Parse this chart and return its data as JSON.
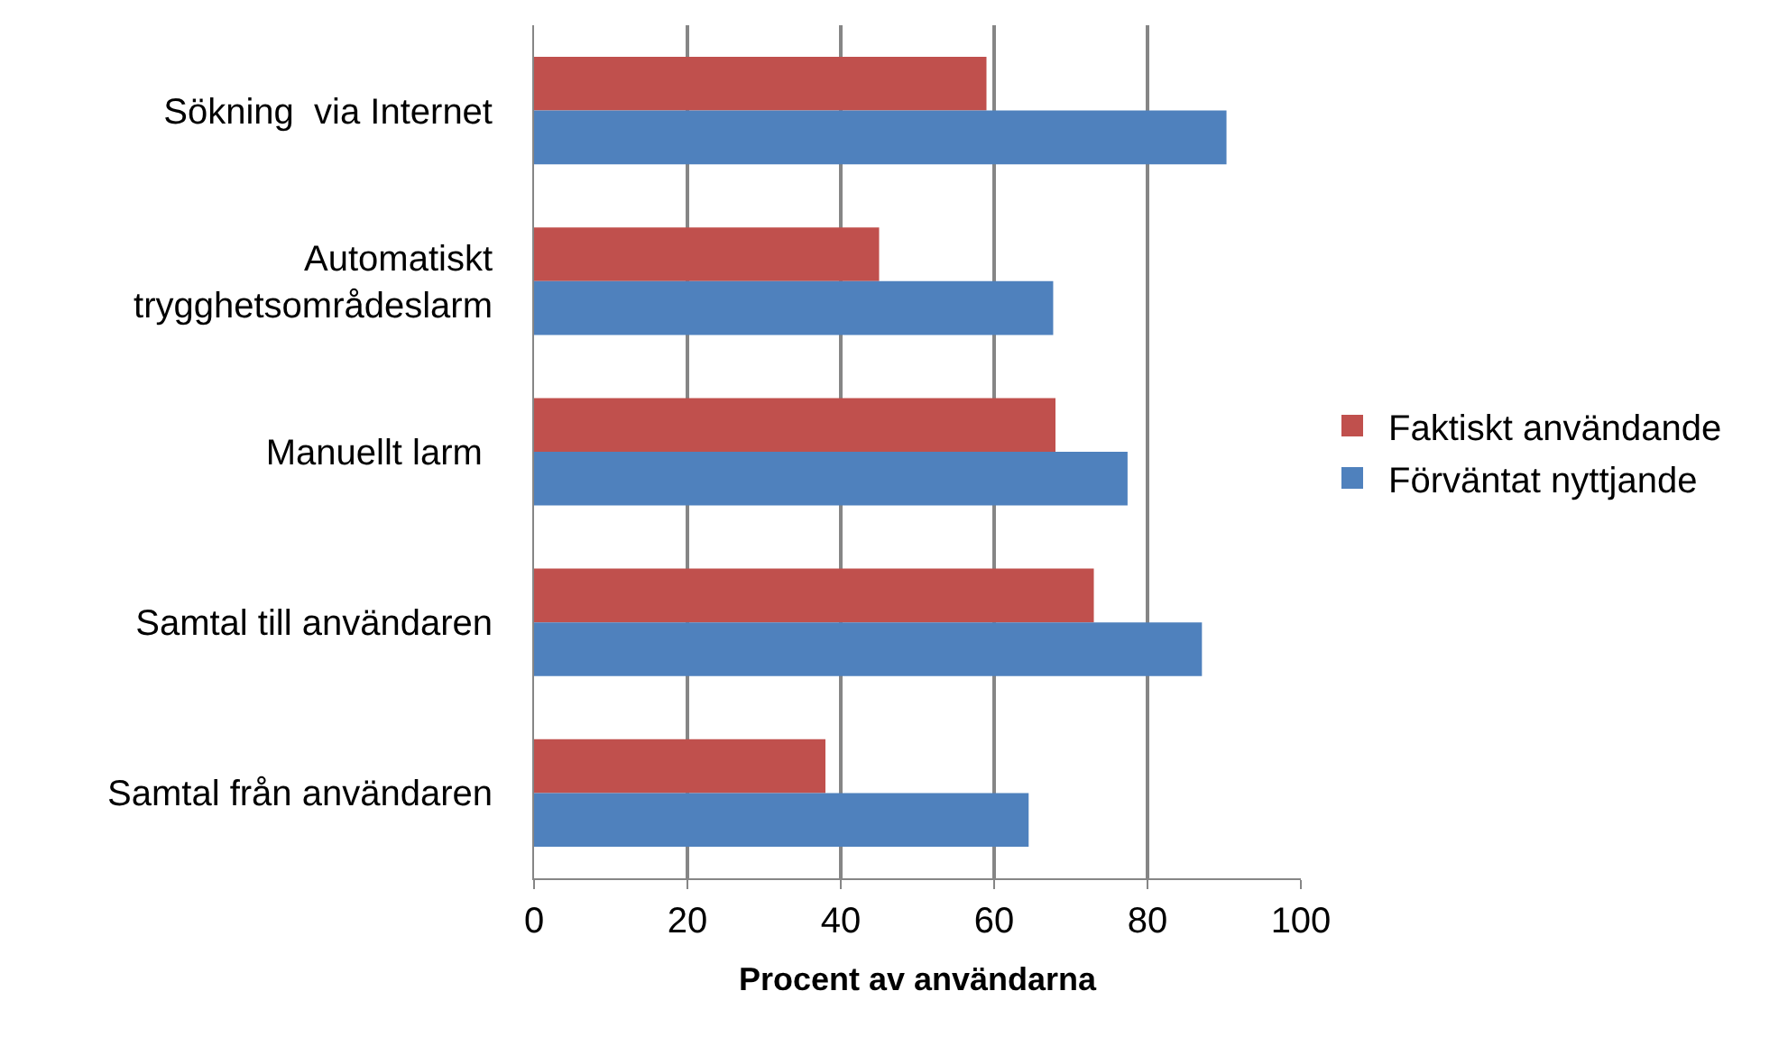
{
  "chart_data": {
    "type": "bar",
    "orientation": "horizontal",
    "xlabel": "Procent av användarna",
    "categories": [
      "Sökning  via Internet",
      "Automatiskt\ntrygghetsområdeslarm",
      "Manuellt larm ",
      "Samtal till användaren",
      "Samtal från användaren"
    ],
    "series": [
      {
        "name": "Faktiskt användande",
        "color": "#c0504d",
        "values": [
          59,
          45,
          68,
          73,
          38
        ]
      },
      {
        "name": "Förväntat nyttjande",
        "color": "#4f81bd",
        "values": [
          90.3,
          67.7,
          77.4,
          87.1,
          64.5
        ]
      }
    ],
    "xlim": [
      0,
      100
    ],
    "xticks": [
      0,
      20,
      40,
      60,
      80,
      100
    ],
    "grid": "x",
    "legend": "right"
  }
}
